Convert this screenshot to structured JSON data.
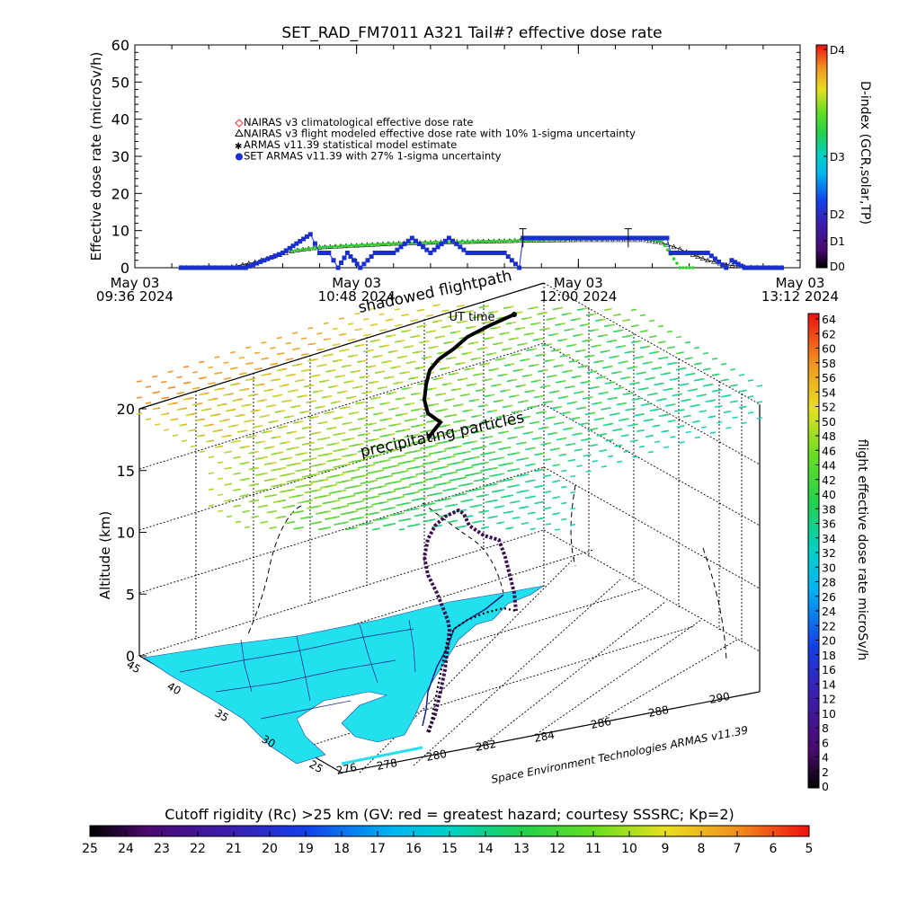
{
  "chart_data": [
    {
      "type": "line",
      "title": "SET_RAD_FM7011  A321 Tail#? effective dose rate",
      "ylabel": "Effective dose rate (microSv/h)",
      "ylim": [
        0,
        60
      ],
      "yticks": [
        "0",
        "10",
        "20",
        "30",
        "40",
        "50",
        "60"
      ],
      "xlim_hours": [
        9.6,
        13.2
      ],
      "xticks": [
        {
          "line1": "May 03",
          "line2": "09:36 2024",
          "hour": 9.6
        },
        {
          "line1": "May 03",
          "line2": "10:48 2024",
          "hour": 10.8
        },
        {
          "line1": "May 03",
          "line2": "12:00 2024",
          "hour": 12.0
        },
        {
          "line1": "May 03",
          "line2": "13:12 2024",
          "hour": 13.2
        }
      ],
      "legend": [
        {
          "label": "NAIRAS v3 climatological effective dose rate",
          "color": "#ff3030",
          "marker": "diamond"
        },
        {
          "label": "NAIRAS v3 flight modeled effective dose rate with 10% 1-sigma uncertainty",
          "color": "#000000",
          "marker": "triangle"
        },
        {
          "label": "ARMAS v11.39 statistical model estimate",
          "color": "#30d030",
          "marker": "star"
        },
        {
          "label": "SET ARMAS v11.39 with 27% 1-sigma uncertainty",
          "color": "#1a2fd0",
          "marker": "circle"
        }
      ],
      "series": [
        {
          "name": "NAIRAS v3 flight modeled effective dose rate with 10% 1-sigma uncertainty",
          "x_hours": [
            9.85,
            10.1,
            10.15,
            10.25,
            10.35,
            10.45,
            10.6,
            10.8,
            11.0,
            11.2,
            11.4,
            11.6,
            11.8,
            12.0,
            12.2,
            12.35,
            12.45,
            12.55,
            12.62,
            12.7,
            12.8,
            12.9,
            13.0,
            13.1
          ],
          "y": [
            0,
            0,
            0.5,
            1.5,
            3,
            4.5,
            5.5,
            6,
            6.5,
            6.8,
            7,
            7.2,
            7.4,
            7.5,
            7.5,
            7.5,
            6.8,
            5,
            3.5,
            2,
            0.8,
            0.2,
            0,
            0
          ]
        },
        {
          "name": "ARMAS v11.39 statistical model estimate",
          "x_hours": [
            10.45,
            10.6,
            10.8,
            11.0,
            11.2,
            11.4,
            11.6,
            11.8,
            12.0,
            12.2,
            12.35,
            12.45,
            12.55,
            12.62
          ],
          "y": [
            4.5,
            5.5,
            6,
            6.5,
            6.8,
            7,
            7.2,
            7.5,
            7.7,
            7.8,
            7.8,
            7.2,
            0,
            0
          ]
        },
        {
          "name": "SET ARMAS v11.39 with 27% 1-sigma uncertainty",
          "x_hours": [
            9.85,
            10.0,
            10.2,
            10.4,
            10.55,
            10.6,
            10.65,
            10.7,
            10.75,
            10.82,
            10.9,
            11.0,
            11.1,
            11.2,
            11.3,
            11.4,
            11.5,
            11.6,
            11.68,
            11.7,
            11.75,
            11.8,
            11.9,
            12.0,
            12.1,
            12.2,
            12.3,
            12.4,
            12.48,
            12.5,
            12.55,
            12.62,
            12.7,
            12.8,
            12.83,
            12.9,
            13.0,
            13.1
          ],
          "y": [
            0,
            0,
            0,
            4,
            9,
            4,
            4,
            0,
            4,
            0,
            4,
            4,
            8,
            4,
            8,
            4,
            4,
            4,
            0,
            8,
            8,
            8,
            8,
            8,
            8,
            8,
            8,
            8,
            8,
            4,
            4,
            4,
            4,
            0,
            2,
            0,
            0,
            0
          ]
        }
      ],
      "errorbars": [
        {
          "x_hour": 11.7,
          "y": 8,
          "err": 2.5
        },
        {
          "x_hour": 12.27,
          "y": 8,
          "err": 2.5
        }
      ],
      "colorbar": {
        "label": "D-index (GCR,solar,TP)",
        "ticks": [
          "D0",
          "D1",
          "D2",
          "D3",
          "D4"
        ]
      }
    },
    {
      "type": "scatter",
      "annotations": [
        "shadowed flightpath",
        "UT time",
        "precipitating particles"
      ],
      "zlabel": "Altitude (km)",
      "zticks": [
        "0",
        "5",
        "10",
        "15",
        "20"
      ],
      "lat_ticks": [
        "45",
        "40",
        "35",
        "30",
        "25"
      ],
      "lon_ticks": [
        "276",
        "278",
        "280",
        "282",
        "284",
        "286",
        "288",
        "290"
      ],
      "credit": "Space Environment Technologies ARMAS v11.39",
      "colorbar": {
        "label": "flight effective dose rate microSv/h",
        "ticks": [
          "0",
          "2",
          "4",
          "6",
          "8",
          "10",
          "12",
          "14",
          "16",
          "18",
          "20",
          "22",
          "24",
          "26",
          "28",
          "30",
          "32",
          "34",
          "36",
          "38",
          "40",
          "42",
          "44",
          "46",
          "48",
          "50",
          "52",
          "54",
          "56",
          "58",
          "60",
          "62",
          "64"
        ]
      },
      "flight_altitude_km": [
        0,
        0.6,
        1.5,
        3.0,
        4.6,
        6.2,
        7.8,
        9.3,
        10.6,
        11.7,
        11.4,
        9.8,
        7.4,
        5.2,
        3.6,
        2.4
      ]
    },
    {
      "type": "heatmap",
      "title": "Cutoff rigidity (Rc) >25 km (GV: red = greatest hazard; courtesy SSSRC; Kp=2)",
      "ticks": [
        "25",
        "24",
        "23",
        "22",
        "21",
        "20",
        "19",
        "18",
        "17",
        "16",
        "15",
        "14",
        "13",
        "12",
        "11",
        "10",
        "9",
        "8",
        "7",
        "6",
        "5"
      ]
    }
  ]
}
